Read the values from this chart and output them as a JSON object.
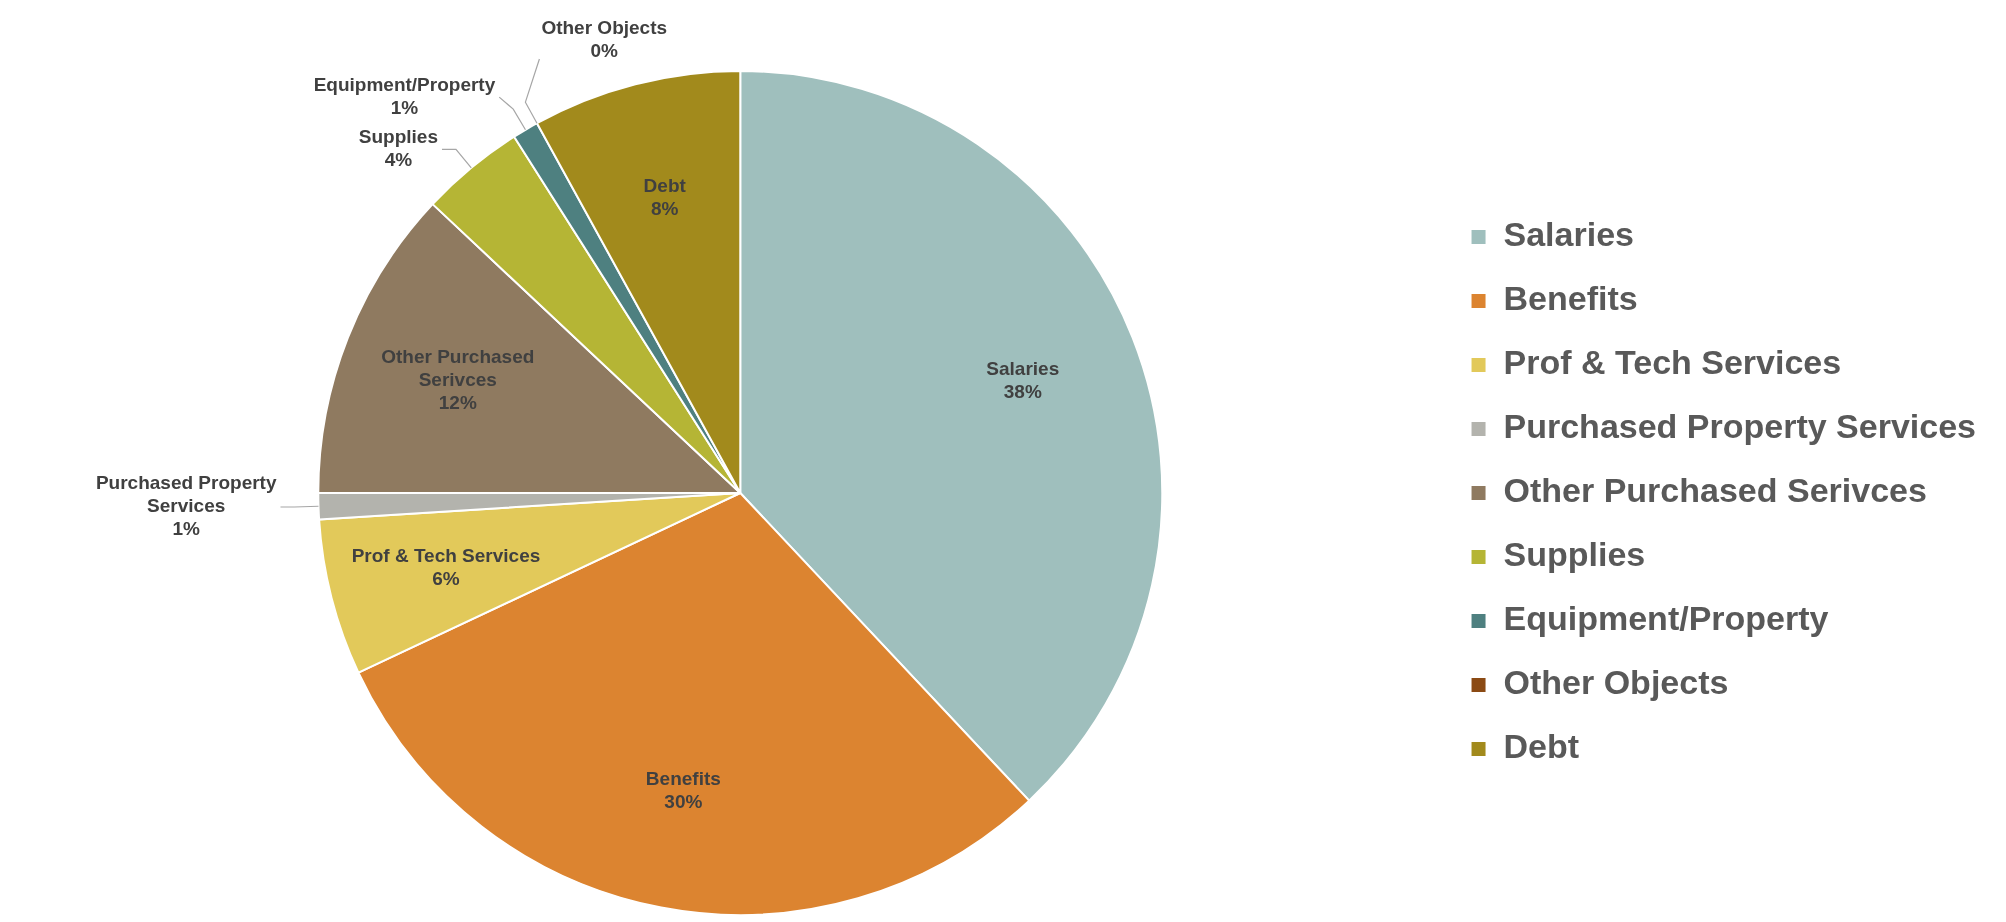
{
  "chart_data": {
    "type": "pie",
    "categories": [
      "Salaries",
      "Benefits",
      "Prof & Tech Services",
      "Purchased Property Services",
      "Other Purchased Serivces",
      "Supplies",
      "Equipment/Property",
      "Other Objects",
      "Debt"
    ],
    "values": [
      38,
      30,
      6,
      1,
      12,
      4,
      1,
      0,
      8
    ],
    "colors": [
      "#9fbfbd",
      "#dc8430",
      "#e2c95a",
      "#b3b3ad",
      "#8f7a60",
      "#b5b535",
      "#4e8080",
      "#8b4a14",
      "#a28a1c"
    ],
    "value_labels": [
      "38%",
      "30%",
      "6%",
      "1%",
      "12%",
      "4%",
      "1%",
      "0%",
      "8%"
    ],
    "legend": "right"
  }
}
